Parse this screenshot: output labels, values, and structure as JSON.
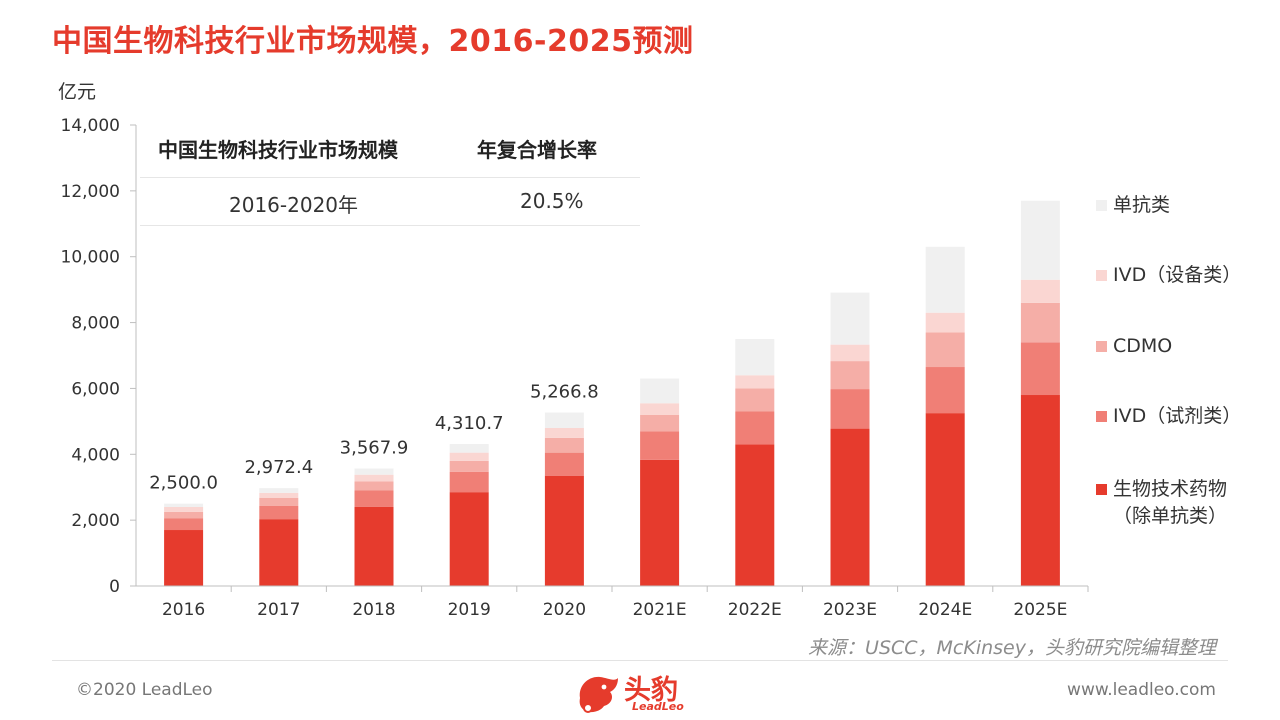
{
  "page": {
    "title": "中国生物科技行业市场规模，2016-2025预测",
    "unit": "亿元",
    "source": "来源：USCC，McKinsey，头豹研究院编辑整理",
    "copyright": "©2020 LeadLeo",
    "website": "www.leadleo.com",
    "logo_text": "头豹",
    "logo_sub": "LeadLeo"
  },
  "cagr_table": {
    "col1_header": "中国生物科技行业市场规模",
    "col2_header": "年复合增长率",
    "period": "2016-2020年",
    "rate": "20.5%"
  },
  "colors": {
    "accent": "#e53b2c",
    "series": [
      "#e63b2d",
      "#f07f76",
      "#f5aea7",
      "#fad6d2",
      "#f0f0f0"
    ]
  },
  "chart_data": {
    "type": "bar",
    "stacked": true,
    "categories": [
      "2016",
      "2017",
      "2018",
      "2019",
      "2020",
      "2021E",
      "2022E",
      "2023E",
      "2024E",
      "2025E"
    ],
    "ylim": [
      0,
      14000
    ],
    "yticks": [
      0,
      2000,
      4000,
      6000,
      8000,
      10000,
      12000,
      14000
    ],
    "ytick_labels": [
      "0",
      "2,000",
      "4,000",
      "6,000",
      "8,000",
      "10,000",
      "12,000",
      "14,000"
    ],
    "ylabel": "亿元",
    "legend_position": "right",
    "series": [
      {
        "name": "生物技术药物（除单抗类）",
        "values": [
          1700,
          2030,
          2400,
          2850,
          3350,
          3830,
          4300,
          4780,
          5250,
          5800
        ]
      },
      {
        "name": "IVD（试剂类）",
        "values": [
          350,
          400,
          500,
          620,
          700,
          870,
          1000,
          1200,
          1400,
          1600
        ]
      },
      {
        "name": "CDMO",
        "values": [
          200,
          250,
          280,
          330,
          450,
          500,
          700,
          850,
          1050,
          1200
        ]
      },
      {
        "name": "IVD（设备类）",
        "values": [
          150,
          150,
          200,
          250,
          300,
          350,
          400,
          500,
          600,
          700
        ]
      },
      {
        "name": "单抗类",
        "values": [
          100,
          142.4,
          187.9,
          260.7,
          466.8,
          750,
          1100,
          1580,
          2000,
          2400
        ]
      }
    ],
    "totals": [
      2500.0,
      2972.4,
      3567.9,
      4310.7,
      5266.8,
      null,
      null,
      null,
      null,
      null
    ],
    "total_labels": [
      "2,500.0",
      "2,972.4",
      "3,567.9",
      "4,310.7",
      "5,266.8",
      "",
      "",
      "",
      "",
      ""
    ]
  }
}
